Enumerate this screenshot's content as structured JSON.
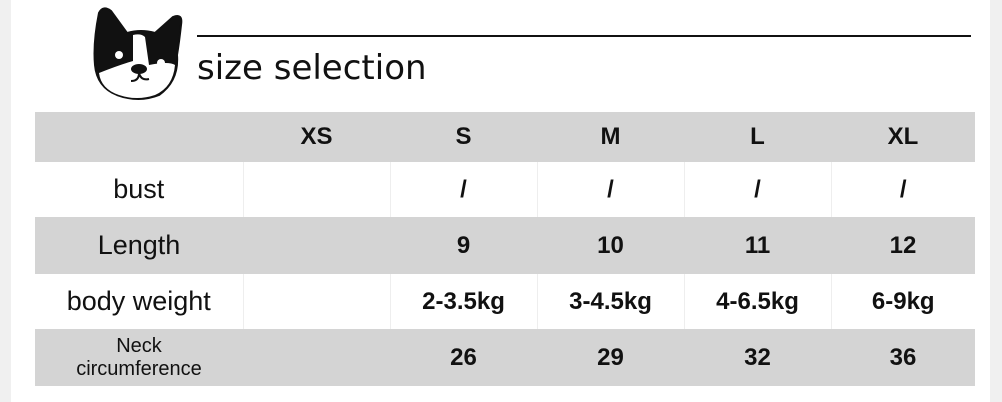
{
  "header": {
    "title": "size selection",
    "logo": "french-bulldog-head-icon"
  },
  "table": {
    "columns": [
      "",
      "XS",
      "S",
      "M",
      "L",
      "XL"
    ],
    "rows": [
      {
        "label": "bust",
        "values": [
          "",
          "/",
          "/",
          "/",
          "/"
        ]
      },
      {
        "label": "Length",
        "values": [
          "",
          "9",
          "10",
          "11",
          "12"
        ]
      },
      {
        "label": "body weight",
        "values": [
          "",
          "2-3.5kg",
          "3-4.5kg",
          "4-6.5kg",
          "6-9kg"
        ]
      },
      {
        "label_line1": "Neck",
        "label_line2": "circumference",
        "values": [
          "",
          "26",
          "29",
          "32",
          "36"
        ]
      }
    ]
  },
  "colors": {
    "row_gray": "#d4d4d4",
    "text": "#111111"
  }
}
